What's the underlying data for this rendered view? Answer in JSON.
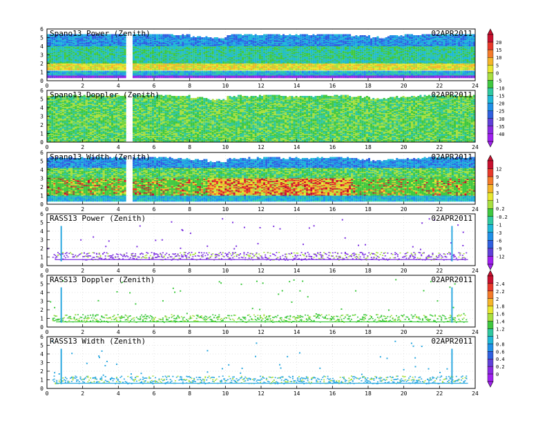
{
  "chart_data": [
    {
      "type": "heatmap",
      "title": "Spano13 Power (Zenith)",
      "date": "02APR2011",
      "xlim": [
        0,
        24
      ],
      "ylim": [
        0,
        6
      ],
      "x_ticks": [
        "0",
        "2",
        "4",
        "6",
        "8",
        "10",
        "12",
        "14",
        "16",
        "18",
        "20",
        "22",
        "24"
      ],
      "y_ticks": [
        "0",
        "1",
        "2",
        "3",
        "4",
        "5",
        "6"
      ],
      "x_values": [
        0,
        1,
        2,
        3,
        4,
        5,
        6,
        7,
        8,
        9,
        10,
        11,
        12,
        13,
        14,
        15,
        16,
        17,
        18,
        19,
        20,
        21,
        22,
        23,
        24
      ],
      "top_height_km": [
        5.3,
        5.3,
        5.3,
        5.3,
        5.3,
        5.3,
        5.3,
        5.2,
        5.0,
        4.8,
        5.2,
        5.2,
        5.4,
        5.2,
        5.2,
        5.3,
        5.3,
        5.1,
        4.9,
        5.1,
        5.2,
        5.3,
        5.3,
        5.3,
        5.3
      ],
      "bands": [
        {
          "from_km": 0.3,
          "to_km": 0.6,
          "level": "purple"
        },
        {
          "from_km": 0.6,
          "to_km": 1.0,
          "level": "cyan"
        },
        {
          "from_km": 1.2,
          "to_km": 2.0,
          "level": "yellow-green"
        },
        {
          "from_km": 2.0,
          "to_km": 4.0,
          "level": "cyan-green"
        },
        {
          "from_km": 4.0,
          "to_km": 5.3,
          "level": "blue"
        }
      ]
    },
    {
      "type": "heatmap",
      "title": "Spano13 Doppler (Zenith)",
      "date": "02APR2011",
      "xlim": [
        0,
        24
      ],
      "ylim": [
        0,
        6
      ],
      "x_ticks": [
        "0",
        "2",
        "4",
        "6",
        "8",
        "10",
        "12",
        "14",
        "16",
        "18",
        "20",
        "22",
        "24"
      ],
      "y_ticks": [
        "0",
        "1",
        "2",
        "3",
        "4",
        "5",
        "6"
      ],
      "x_values": [
        0,
        1,
        2,
        3,
        4,
        5,
        6,
        7,
        8,
        9,
        10,
        11,
        12,
        13,
        14,
        15,
        16,
        17,
        18,
        19,
        20,
        21,
        22,
        23,
        24
      ],
      "top_height_km": [
        5.3,
        5.3,
        5.3,
        5.3,
        5.3,
        5.3,
        5.3,
        5.2,
        5.0,
        4.8,
        5.2,
        5.2,
        5.4,
        5.2,
        5.2,
        5.3,
        5.3,
        5.1,
        4.9,
        5.1,
        5.2,
        5.3,
        5.3,
        5.3,
        5.3
      ],
      "bands": [
        {
          "from_km": 0.0,
          "to_km": 5.3,
          "level": "green"
        }
      ]
    },
    {
      "type": "heatmap",
      "title": "Spano13 Width (Zenith)",
      "date": "02APR2011",
      "xlim": [
        0,
        24
      ],
      "ylim": [
        0,
        6
      ],
      "x_ticks": [
        "0",
        "2",
        "4",
        "6",
        "8",
        "10",
        "12",
        "14",
        "16",
        "18",
        "20",
        "22",
        "24"
      ],
      "y_ticks": [
        "0",
        "1",
        "2",
        "3",
        "4",
        "5",
        "6"
      ],
      "x_values": [
        0,
        1,
        2,
        3,
        4,
        5,
        6,
        7,
        8,
        9,
        10,
        11,
        12,
        13,
        14,
        15,
        16,
        17,
        18,
        19,
        20,
        21,
        22,
        23,
        24
      ],
      "top_height_km": [
        5.3,
        5.3,
        5.3,
        5.3,
        5.3,
        5.3,
        5.3,
        5.2,
        5.0,
        4.8,
        5.2,
        5.2,
        5.4,
        5.2,
        5.2,
        5.3,
        5.3,
        5.1,
        4.9,
        5.1,
        5.2,
        5.3,
        5.3,
        5.3,
        5.3
      ],
      "bands": [
        {
          "from_km": 0.3,
          "to_km": 1.0,
          "level": "cyan"
        },
        {
          "from_km": 1.0,
          "to_km": 3.0,
          "level": "yellow-red"
        },
        {
          "from_km": 3.0,
          "to_km": 4.2,
          "level": "green"
        },
        {
          "from_km": 4.2,
          "to_km": 5.3,
          "level": "blue"
        }
      ]
    },
    {
      "type": "scatter",
      "title": "RASS13 Power (Zenith)",
      "date": "02APR2011",
      "xlim": [
        0,
        24
      ],
      "ylim": [
        0,
        6
      ],
      "x_ticks": [
        "0",
        "2",
        "4",
        "6",
        "8",
        "10",
        "12",
        "14",
        "16",
        "18",
        "20",
        "22",
        "24"
      ],
      "y_ticks": [
        "0",
        "1",
        "2",
        "3",
        "4",
        "5",
        "6"
      ],
      "baseline_km": 0.7,
      "spike_times_h": [
        0.8,
        22.7
      ],
      "spike_top_km": 4.6,
      "dominant_color": "#7b2fe0"
    },
    {
      "type": "scatter",
      "title": "RASS13 Doppler (Zenith)",
      "date": "02APR2011",
      "xlim": [
        0,
        24
      ],
      "ylim": [
        0,
        6
      ],
      "x_ticks": [
        "0",
        "2",
        "4",
        "6",
        "8",
        "10",
        "12",
        "14",
        "16",
        "18",
        "20",
        "22",
        "24"
      ],
      "y_ticks": [
        "0",
        "1",
        "2",
        "3",
        "4",
        "5",
        "6"
      ],
      "baseline_km": 0.6,
      "spike_times_h": [
        0.8,
        22.7
      ],
      "spike_top_km": 4.6,
      "dominant_color": "#3cc83c"
    },
    {
      "type": "scatter",
      "title": "RASS13 Width (Zenith)",
      "date": "02APR2011",
      "xlim": [
        0,
        24
      ],
      "ylim": [
        0,
        6
      ],
      "x_ticks": [
        "0",
        "2",
        "4",
        "6",
        "8",
        "10",
        "12",
        "14",
        "16",
        "18",
        "20",
        "22",
        "24"
      ],
      "y_ticks": [
        "0",
        "1",
        "2",
        "3",
        "4",
        "5",
        "6"
      ],
      "baseline_km": 0.6,
      "spike_times_h": [
        0.8,
        22.7
      ],
      "spike_top_km": 4.6,
      "dominant_color": "#2aa8e0"
    }
  ],
  "colorbars": [
    {
      "labels": [
        "20",
        "15",
        "10",
        "5",
        "0",
        "-5",
        "-10",
        "-15",
        "-20",
        "-25",
        "-30",
        "-35",
        "-40"
      ],
      "colors": [
        "#c8102e",
        "#e8392a",
        "#f47b2a",
        "#f5b52a",
        "#e8e830",
        "#a8e040",
        "#40c840",
        "#30c8a0",
        "#20b8d8",
        "#2090e8",
        "#3060e0",
        "#6040d8",
        "#8a2be2",
        "#a020f0"
      ]
    },
    {
      "labels": [
        "12",
        "9",
        "6",
        "3",
        "1",
        "0.2",
        "-0.2",
        "-1",
        "-3",
        "-6",
        "-9",
        "-12"
      ],
      "colors": [
        "#c8102e",
        "#e8392a",
        "#f47b2a",
        "#f5b52a",
        "#e8e830",
        "#a8e040",
        "#40c840",
        "#30c8a0",
        "#20b8d8",
        "#2090e8",
        "#3060e0",
        "#6040d8",
        "#a020f0"
      ]
    },
    {
      "labels": [
        "2.4",
        "2.2",
        "2",
        "1.8",
        "1.6",
        "1.4",
        "1.2",
        "1",
        "0.8",
        "0.6",
        "0.4",
        "0.2",
        "0"
      ],
      "colors": [
        "#c8102e",
        "#e8392a",
        "#f47b2a",
        "#f5b52a",
        "#e8e830",
        "#a8e040",
        "#40c840",
        "#30c8a0",
        "#20b8d8",
        "#2090e8",
        "#3060e0",
        "#6040d8",
        "#8a2be2",
        "#a020f0"
      ]
    }
  ]
}
